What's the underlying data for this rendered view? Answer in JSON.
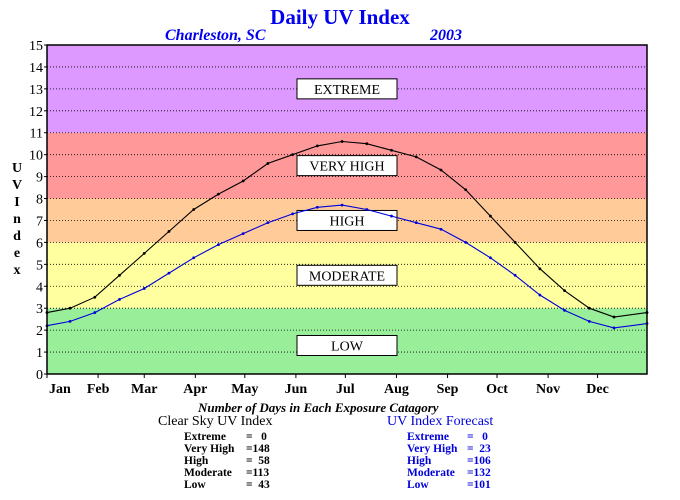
{
  "chart_data": {
    "type": "line",
    "title": "Daily UV Index",
    "subtitle_location": "Charleston, SC",
    "subtitle_year": "2003",
    "ylabel": "UV Index",
    "ylim": [
      0,
      15
    ],
    "yticks": [
      "0",
      "1",
      "2",
      "3",
      "4",
      "5",
      "6",
      "7",
      "8",
      "9",
      "10",
      "11",
      "12",
      "13",
      "14",
      "15"
    ],
    "xticks": [
      "Jan",
      "Feb",
      "Mar",
      "Apr",
      "May",
      "Jun",
      "Jul",
      "Aug",
      "Sep",
      "Oct",
      "Nov",
      "Dec"
    ],
    "grid": true,
    "bands": [
      {
        "name": "LOW",
        "from": 0,
        "to": 3,
        "color": "#99ee99"
      },
      {
        "name": "MODERATE",
        "from": 3,
        "to": 6,
        "color": "#ffffa0"
      },
      {
        "name": "HIGH",
        "from": 6,
        "to": 8,
        "color": "#ffcc99"
      },
      {
        "name": "VERY HIGH",
        "from": 8,
        "to": 11,
        "color": "#ff9999"
      },
      {
        "name": "EXTREME",
        "from": 11,
        "to": 15,
        "color": "#dd99ff"
      }
    ],
    "band_labels": [
      {
        "text": "EXTREME",
        "y": 13.0
      },
      {
        "text": "VERY HIGH",
        "y": 9.5
      },
      {
        "text": "HIGH",
        "y": 7.0
      },
      {
        "text": "MODERATE",
        "y": 4.5
      },
      {
        "text": "LOW",
        "y": 1.3
      }
    ],
    "series": [
      {
        "name": "Clear Sky UV Index",
        "color": "#000000",
        "x": [
          1,
          15,
          30,
          45,
          60,
          75,
          90,
          105,
          120,
          135,
          150,
          165,
          180,
          195,
          210,
          225,
          240,
          255,
          270,
          285,
          300,
          315,
          330,
          345,
          365
        ],
        "y": [
          2.8,
          3.0,
          3.5,
          4.5,
          5.5,
          6.5,
          7.5,
          8.2,
          8.8,
          9.6,
          10.0,
          10.4,
          10.6,
          10.5,
          10.2,
          9.9,
          9.3,
          8.4,
          7.2,
          6.0,
          4.8,
          3.8,
          3.0,
          2.6,
          2.8
        ]
      },
      {
        "name": "UV Index Forecast",
        "color": "#0000dd",
        "x": [
          1,
          15,
          30,
          45,
          60,
          75,
          90,
          105,
          120,
          135,
          150,
          165,
          180,
          195,
          210,
          225,
          240,
          255,
          270,
          285,
          300,
          315,
          330,
          345,
          365
        ],
        "y": [
          2.2,
          2.4,
          2.8,
          3.4,
          3.9,
          4.6,
          5.3,
          5.9,
          6.4,
          6.9,
          7.3,
          7.6,
          7.7,
          7.5,
          7.2,
          6.9,
          6.6,
          6.0,
          5.3,
          4.5,
          3.6,
          2.9,
          2.4,
          2.1,
          2.3
        ]
      }
    ],
    "footer_title": "Number of Days in Each Exposure Catagory",
    "summary": [
      {
        "title": "Clear Sky UV Index",
        "color": "#000000",
        "rows": [
          {
            "label": "Extreme",
            "value": "=   0"
          },
          {
            "label": "Very High",
            "value": "=148"
          },
          {
            "label": "High",
            "value": "=  58"
          },
          {
            "label": "Moderate",
            "value": "=113"
          },
          {
            "label": "Low",
            "value": "=  43"
          }
        ]
      },
      {
        "title": "UV Index Forecast",
        "color": "#0000dd",
        "rows": [
          {
            "label": "Extreme",
            "value": "=   0"
          },
          {
            "label": "Very High",
            "value": "=  23"
          },
          {
            "label": "High",
            "value": "=106"
          },
          {
            "label": "Moderate",
            "value": "=132"
          },
          {
            "label": "Low",
            "value": "=101"
          }
        ]
      }
    ]
  }
}
